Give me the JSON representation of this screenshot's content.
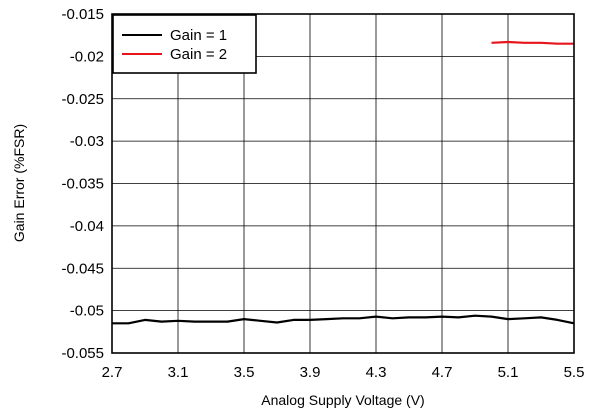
{
  "chart_data": {
    "type": "line",
    "title": "",
    "xlabel": "Analog Supply Voltage (V)",
    "ylabel": "Gain Error (%FSR)",
    "xlim": [
      2.7,
      5.5
    ],
    "ylim": [
      -0.055,
      -0.015
    ],
    "xticks": [
      2.7,
      3.1,
      3.5,
      3.9,
      4.3,
      4.7,
      5.1,
      5.5
    ],
    "xtick_labels": [
      "2.7",
      "3.1",
      "3.5",
      "3.9",
      "4.3",
      "4.7",
      "5.1",
      "5.5"
    ],
    "yticks": [
      -0.015,
      -0.02,
      -0.025,
      -0.03,
      -0.035,
      -0.04,
      -0.045,
      -0.05,
      -0.055
    ],
    "ytick_labels": [
      "-0.015",
      "-0.02",
      "-0.025",
      "-0.03",
      "-0.035",
      "-0.04",
      "-0.045",
      "-0.05",
      "-0.055"
    ],
    "grid": true,
    "legend_position": "top-left",
    "series": [
      {
        "name": "Gain = 1",
        "color": "#000000",
        "x": [
          2.7,
          2.8,
          2.9,
          3.0,
          3.1,
          3.2,
          3.3,
          3.4,
          3.5,
          3.6,
          3.7,
          3.8,
          3.9,
          4.0,
          4.1,
          4.2,
          4.3,
          4.4,
          4.5,
          4.6,
          4.7,
          4.8,
          4.9,
          5.0,
          5.1,
          5.2,
          5.3,
          5.4,
          5.5
        ],
        "y": [
          -0.0515,
          -0.0515,
          -0.0511,
          -0.0513,
          -0.0512,
          -0.0513,
          -0.0513,
          -0.0513,
          -0.051,
          -0.0512,
          -0.0514,
          -0.0511,
          -0.0511,
          -0.051,
          -0.0509,
          -0.0509,
          -0.0507,
          -0.0509,
          -0.0508,
          -0.0508,
          -0.0507,
          -0.0508,
          -0.0506,
          -0.0507,
          -0.051,
          -0.0509,
          -0.0508,
          -0.0511,
          -0.0515
        ]
      },
      {
        "name": "Gain = 2",
        "color": "#e8141c",
        "x": [
          5.0,
          5.1,
          5.2,
          5.3,
          5.4,
          5.5
        ],
        "y": [
          -0.0184,
          -0.0183,
          -0.0184,
          -0.0184,
          -0.0185,
          -0.0185
        ]
      }
    ]
  }
}
